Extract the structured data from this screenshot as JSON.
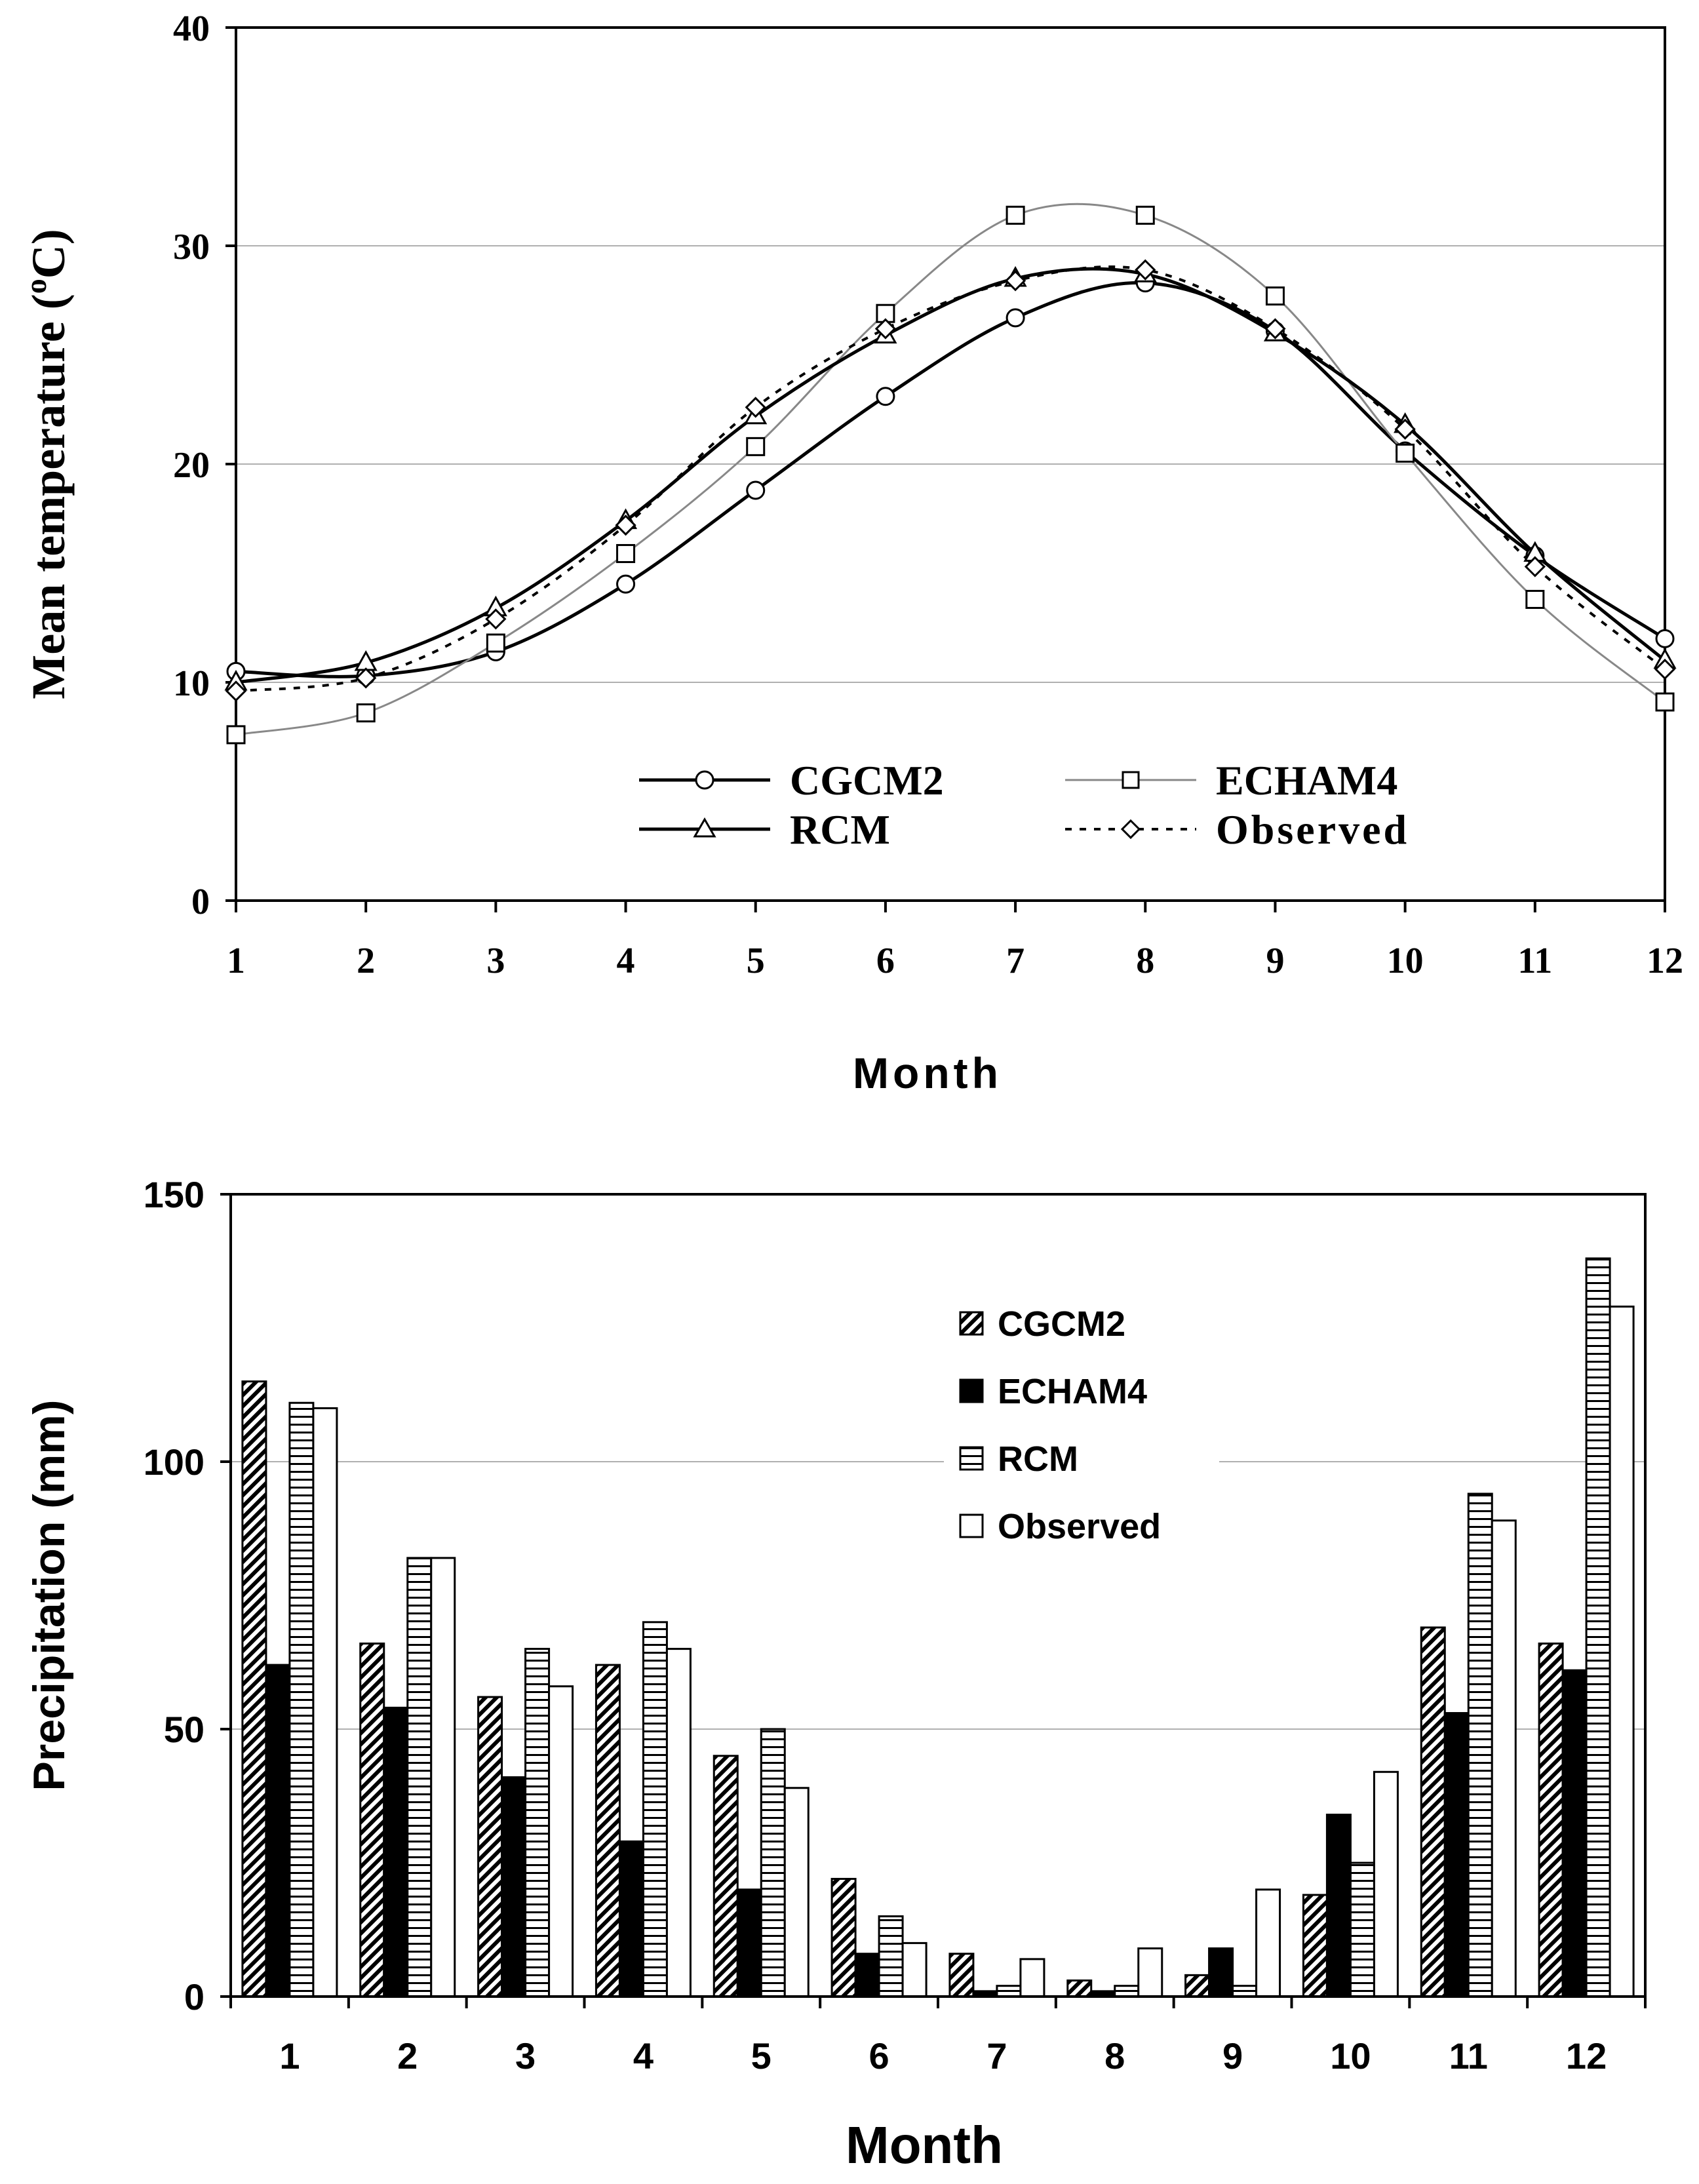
{
  "chart_data": [
    {
      "type": "line",
      "ylabel_main": "Mean temperature (",
      "ylabel_sup": "o",
      "ylabel_end": "C)",
      "xlabel": "Month",
      "ylim": [
        0,
        40
      ],
      "yticks": [
        "0",
        "10",
        "20",
        "30",
        "40"
      ],
      "categories": [
        "1",
        "2",
        "3",
        "4",
        "5",
        "6",
        "7",
        "8",
        "9",
        "10",
        "11",
        "12"
      ],
      "grid": true,
      "legend": "bottom-center",
      "series": [
        {
          "name": "CGCM2",
          "marker": "circle",
          "style": "solid-thick",
          "values": [
            10.5,
            10.3,
            11.4,
            14.5,
            18.8,
            23.1,
            26.7,
            28.3,
            26.1,
            20.6,
            15.8,
            12.0
          ]
        },
        {
          "name": "ECHAM4",
          "marker": "square",
          "style": "solid-thin",
          "values": [
            7.6,
            8.6,
            11.8,
            15.9,
            20.8,
            26.9,
            31.4,
            31.4,
            27.7,
            20.5,
            13.8,
            9.1
          ]
        },
        {
          "name": "RCM",
          "marker": "triangle",
          "style": "solid-thick",
          "values": [
            10.0,
            10.9,
            13.4,
            17.4,
            22.2,
            25.9,
            28.5,
            28.7,
            26.0,
            21.8,
            15.9,
            11.0
          ]
        },
        {
          "name": "Observed",
          "marker": "diamond",
          "style": "dotted",
          "values": [
            9.6,
            10.2,
            12.9,
            17.2,
            22.6,
            26.2,
            28.4,
            28.9,
            26.2,
            21.6,
            15.3,
            10.6
          ]
        }
      ]
    },
    {
      "type": "bar",
      "ylabel": "Precipitation (mm)",
      "xlabel": "Month",
      "ylim": [
        0,
        150
      ],
      "yticks": [
        "0",
        "50",
        "100",
        "150"
      ],
      "categories": [
        "1",
        "2",
        "3",
        "4",
        "5",
        "6",
        "7",
        "8",
        "9",
        "10",
        "11",
        "12"
      ],
      "grid": true,
      "legend": "top-right",
      "series": [
        {
          "name": "CGCM2",
          "fill": "hatch-diagonal",
          "values": [
            115,
            66,
            56,
            62,
            45,
            22,
            8,
            3,
            4,
            19,
            69,
            66
          ]
        },
        {
          "name": "ECHAM4",
          "fill": "solid-black",
          "values": [
            62,
            54,
            41,
            29,
            20,
            8,
            1,
            1,
            9,
            34,
            53,
            61
          ]
        },
        {
          "name": "RCM",
          "fill": "hatch-horizontal",
          "values": [
            111,
            82,
            65,
            70,
            50,
            15,
            2,
            2,
            2,
            25,
            94,
            138
          ]
        },
        {
          "name": "Observed",
          "fill": "white",
          "values": [
            110,
            82,
            58,
            65,
            39,
            10,
            7,
            9,
            20,
            42,
            89,
            129
          ]
        }
      ]
    }
  ]
}
